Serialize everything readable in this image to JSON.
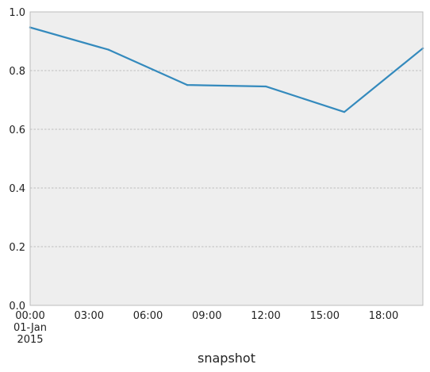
{
  "chart_data": {
    "type": "line",
    "x": [
      "2015-01-01T00:00",
      "2015-01-01T04:00",
      "2015-01-01T08:00",
      "2015-01-01T12:00",
      "2015-01-01T16:00",
      "2015-01-01T20:00"
    ],
    "series": [
      {
        "values": [
          0.947,
          0.871,
          0.751,
          0.746,
          0.659,
          0.876
        ],
        "color": "#348abd"
      }
    ],
    "xlim": [
      "2015-01-01T00:00",
      "2015-01-01T20:00"
    ],
    "ylim": [
      0.0,
      1.0
    ],
    "x_ticks": [
      {
        "value": "2015-01-01T00:00",
        "label": "00:00",
        "sublabel1": "01-Jan",
        "sublabel2": "2015"
      },
      {
        "value": "2015-01-01T03:00",
        "label": "03:00"
      },
      {
        "value": "2015-01-01T06:00",
        "label": "06:00"
      },
      {
        "value": "2015-01-01T09:00",
        "label": "09:00"
      },
      {
        "value": "2015-01-01T12:00",
        "label": "12:00"
      },
      {
        "value": "2015-01-01T15:00",
        "label": "15:00"
      },
      {
        "value": "2015-01-01T18:00",
        "label": "18:00"
      }
    ],
    "y_ticks": [
      {
        "value": 0.0,
        "label": "0.0"
      },
      {
        "value": 0.2,
        "label": "0.2"
      },
      {
        "value": 0.4,
        "label": "0.4"
      },
      {
        "value": 0.6,
        "label": "0.6"
      },
      {
        "value": 0.8,
        "label": "0.8"
      },
      {
        "value": 1.0,
        "label": "1.0"
      }
    ],
    "xlabel": "snapshot",
    "ylabel": "",
    "title": "",
    "grid": true,
    "grid_axis": "y",
    "background_color": "#eeeeee",
    "grid_color": "#b0b0b0"
  }
}
